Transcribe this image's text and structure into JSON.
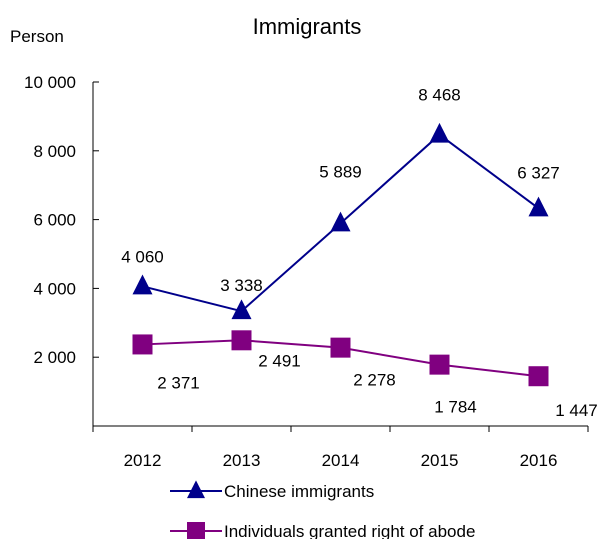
{
  "chart_data": {
    "type": "line",
    "title": "Immigrants",
    "ylabel": "Person",
    "xlabel": "",
    "categories": [
      "2012",
      "2013",
      "2014",
      "2015",
      "2016"
    ],
    "ylim": [
      0,
      10000
    ],
    "yticks": [
      0,
      2000,
      4000,
      6000,
      8000,
      10000
    ],
    "ytick_labels": [
      "",
      "2 000",
      "4 000",
      "6 000",
      "8 000",
      "10 000"
    ],
    "grid": false,
    "legend_position": "bottom",
    "series": [
      {
        "name": "Chinese immigrants",
        "values": [
          4060,
          3338,
          5889,
          8468,
          6327
        ],
        "labels": [
          "4 060",
          "3 338",
          "5 889",
          "8 468",
          "6 327"
        ],
        "marker": "triangle",
        "color": "#00008B"
      },
      {
        "name": "Individuals granted right of abode",
        "values": [
          2371,
          2491,
          2278,
          1784,
          1447
        ],
        "labels": [
          "2 371",
          "2 491",
          "2 278",
          "1 784",
          "1 447"
        ],
        "marker": "square",
        "color": "#800080"
      }
    ]
  }
}
